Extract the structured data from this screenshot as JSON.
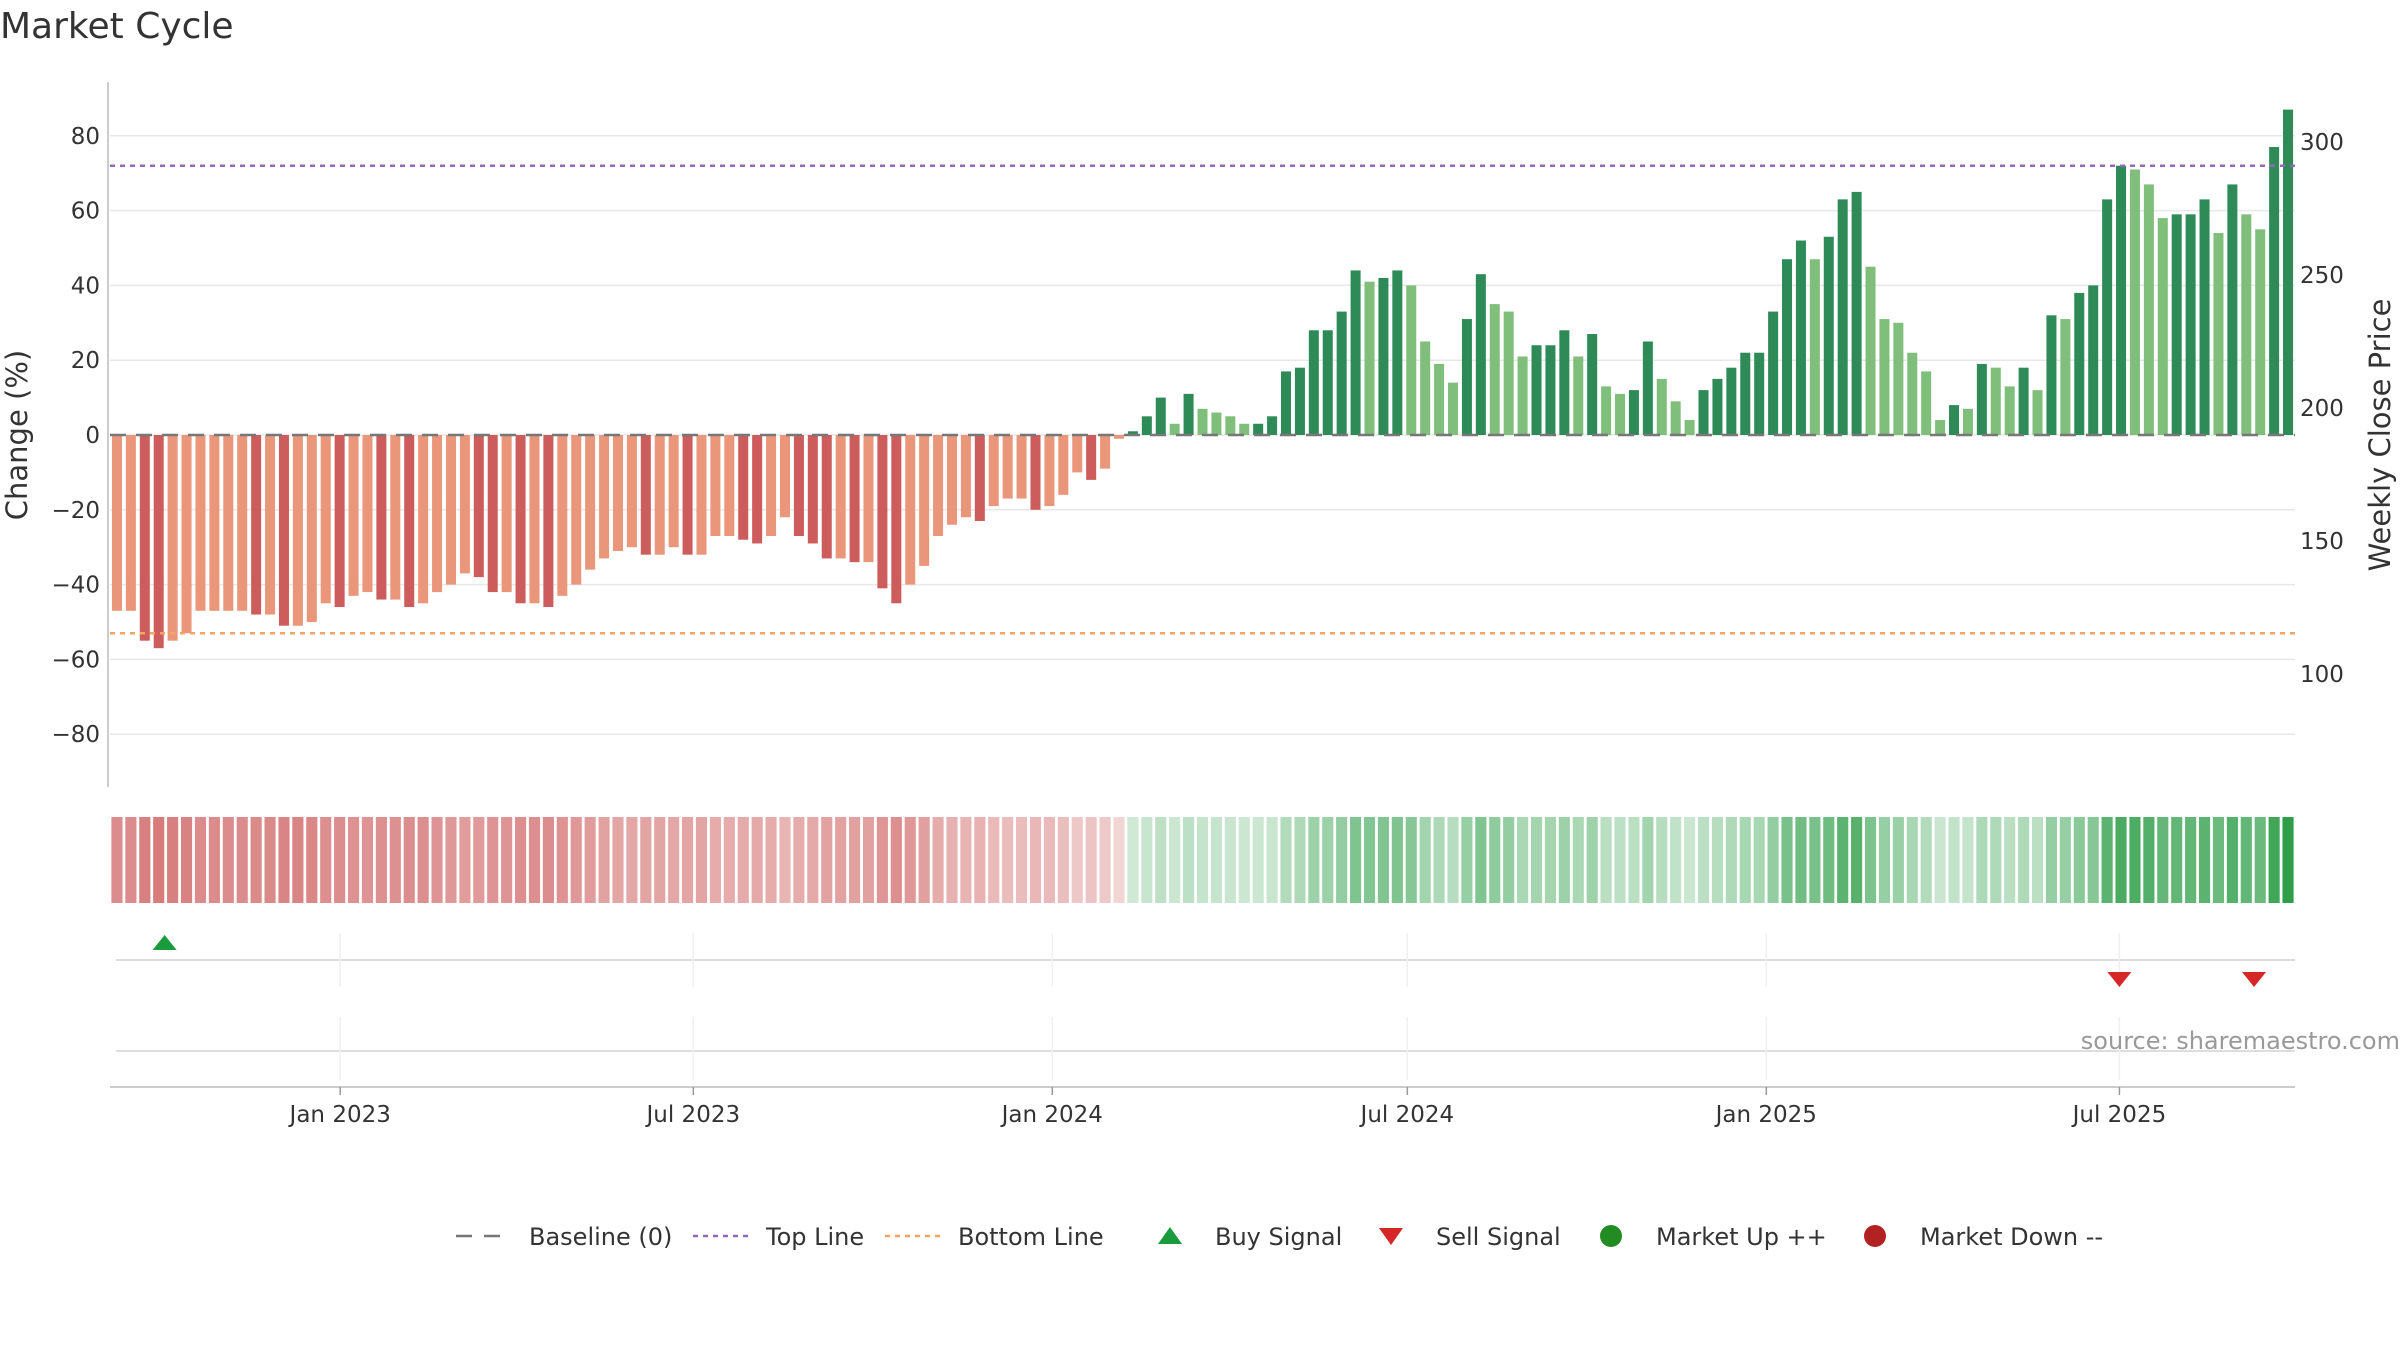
{
  "chart_data": {
    "type": "bar",
    "title": "Market Cycle",
    "ylabel": "Change (%)",
    "y2label": "Weekly Close Price",
    "ylim": [
      -95,
      95
    ],
    "yticks": [
      -80,
      -60,
      -40,
      -20,
      0,
      20,
      40,
      60,
      80
    ],
    "y2ticks": [
      100,
      150,
      200,
      250,
      300
    ],
    "x_start": "2022-09-05",
    "x_end": "2025-09-29",
    "xticks": [
      {
        "date": "2023-01-01",
        "label": "Jan 2023"
      },
      {
        "date": "2023-07-01",
        "label": "Jul 2023"
      },
      {
        "date": "2024-01-01",
        "label": "Jan 2024"
      },
      {
        "date": "2024-07-01",
        "label": "Jul 2024"
      },
      {
        "date": "2025-01-01",
        "label": "Jan 2025"
      },
      {
        "date": "2025-07-01",
        "label": "Jul 2025"
      }
    ],
    "top_line": 72,
    "bottom_line": -53,
    "values": [
      -47,
      -47,
      -55,
      -57,
      -55,
      -53,
      -47,
      -47,
      -47,
      -47,
      -48,
      -48,
      -51,
      -51,
      -50,
      -45,
      -46,
      -43,
      -42,
      -44,
      -44,
      -46,
      -45,
      -42,
      -40,
      -37,
      -38,
      -42,
      -42,
      -45,
      -45,
      -46,
      -43,
      -40,
      -36,
      -33,
      -31,
      -30,
      -32,
      -32,
      -30,
      -32,
      -32,
      -27,
      -27,
      -28,
      -29,
      -27,
      -22,
      -27,
      -29,
      -33,
      -33,
      -34,
      -34,
      -41,
      -45,
      -40,
      -35,
      -27,
      -24,
      -22,
      -23,
      -19,
      -17,
      -17,
      -20,
      -19,
      -16,
      -10,
      -12,
      -9,
      -1,
      1,
      5,
      10,
      3,
      11,
      7,
      6,
      5,
      3,
      3,
      5,
      17,
      18,
      28,
      28,
      33,
      44,
      41,
      42,
      44,
      40,
      25,
      19,
      14,
      31,
      43,
      35,
      33,
      21,
      24,
      24,
      28,
      21,
      27,
      13,
      11,
      12,
      25,
      15,
      9,
      4,
      12,
      15,
      18,
      22,
      22,
      33,
      47,
      52,
      47,
      53,
      63,
      65,
      45,
      31,
      30,
      22,
      17,
      4,
      8,
      7,
      19,
      18,
      13,
      18,
      12,
      32,
      31,
      38,
      40,
      63,
      72,
      71,
      67,
      58,
      59,
      59,
      63,
      54,
      67,
      59,
      55,
      77,
      87
    ],
    "bar_colors": {
      "strong_up": "#2e8b57",
      "weak_up": "#7fbf7b",
      "strong_down": "#cd5c5c",
      "weak_down": "#e9967a",
      "top_line": "#9467bd",
      "bottom_line": "#f4a460",
      "baseline": "#777777"
    },
    "heat_colors": {
      "negative": "#c84b4b",
      "positive": "#2e9e48"
    },
    "buy_signals": [
      "2022-10-03"
    ],
    "sell_signals": [
      "2025-07-01",
      "2025-09-08"
    ],
    "source": "source: sharemaestro.com",
    "legend": [
      {
        "label": "Baseline (0)",
        "kind": "dash",
        "color": "#777777"
      },
      {
        "label": "Top Line",
        "kind": "dotline",
        "color": "#9467bd"
      },
      {
        "label": "Bottom Line",
        "kind": "dotline",
        "color": "#f4a460"
      },
      {
        "label": "Buy Signal",
        "kind": "triangle-up",
        "color": "#1a9c3e"
      },
      {
        "label": "Sell Signal",
        "kind": "triangle-down",
        "color": "#d62728"
      },
      {
        "label": "Market Up ++",
        "kind": "circle",
        "color": "#228b22"
      },
      {
        "label": "Market Down --",
        "kind": "circle",
        "color": "#b22222"
      }
    ]
  }
}
